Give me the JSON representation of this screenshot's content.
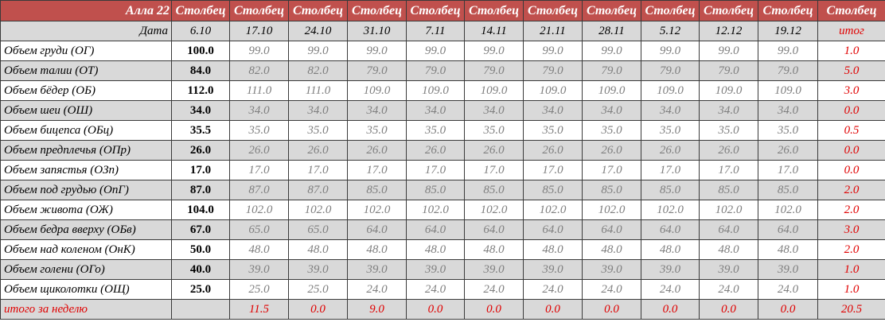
{
  "table": {
    "title": "Алла 22",
    "column_headers": [
      "Столбец",
      "Столбец",
      "Столбец",
      "Столбец",
      "Столбец",
      "Столбец",
      "Столбец",
      "Столбец",
      "Столбец",
      "Столбец",
      "Столбец",
      "Столбец"
    ],
    "date_label": "Дата",
    "dates": [
      "6.10",
      "17.10",
      "24.10",
      "31.10",
      "7.11",
      "14.11",
      "21.11",
      "28.11",
      "5.12",
      "12.12",
      "19.12"
    ],
    "total_label": "итог",
    "rows": [
      {
        "label": "Объем груди (ОГ)",
        "values": [
          "100.0",
          "99.0",
          "99.0",
          "99.0",
          "99.0",
          "99.0",
          "99.0",
          "99.0",
          "99.0",
          "99.0",
          "99.0"
        ],
        "total": "1.0"
      },
      {
        "label": "Объем талии (ОТ)",
        "values": [
          "84.0",
          "82.0",
          "82.0",
          "79.0",
          "79.0",
          "79.0",
          "79.0",
          "79.0",
          "79.0",
          "79.0",
          "79.0"
        ],
        "total": "5.0"
      },
      {
        "label": "Объем бёдер (ОБ)",
        "values": [
          "112.0",
          "111.0",
          "111.0",
          "109.0",
          "109.0",
          "109.0",
          "109.0",
          "109.0",
          "109.0",
          "109.0",
          "109.0"
        ],
        "total": "3.0"
      },
      {
        "label": "Объем шеи (ОШ)",
        "values": [
          "34.0",
          "34.0",
          "34.0",
          "34.0",
          "34.0",
          "34.0",
          "34.0",
          "34.0",
          "34.0",
          "34.0",
          "34.0"
        ],
        "total": "0.0"
      },
      {
        "label": "Объем бицепса (ОБц)",
        "values": [
          "35.5",
          "35.0",
          "35.0",
          "35.0",
          "35.0",
          "35.0",
          "35.0",
          "35.0",
          "35.0",
          "35.0",
          "35.0"
        ],
        "total": "0.5"
      },
      {
        "label": "Объем предплечья (ОПр)",
        "values": [
          "26.0",
          "26.0",
          "26.0",
          "26.0",
          "26.0",
          "26.0",
          "26.0",
          "26.0",
          "26.0",
          "26.0",
          "26.0"
        ],
        "total": "0.0"
      },
      {
        "label": "Объем запястья (ОЗп)",
        "values": [
          "17.0",
          "17.0",
          "17.0",
          "17.0",
          "17.0",
          "17.0",
          "17.0",
          "17.0",
          "17.0",
          "17.0",
          "17.0"
        ],
        "total": "0.0"
      },
      {
        "label": "Объем под грудью (ОпГ)",
        "values": [
          "87.0",
          "87.0",
          "87.0",
          "85.0",
          "85.0",
          "85.0",
          "85.0",
          "85.0",
          "85.0",
          "85.0",
          "85.0"
        ],
        "total": "2.0"
      },
      {
        "label": "Объем живота (ОЖ)",
        "values": [
          "104.0",
          "102.0",
          "102.0",
          "102.0",
          "102.0",
          "102.0",
          "102.0",
          "102.0",
          "102.0",
          "102.0",
          "102.0"
        ],
        "total": "2.0"
      },
      {
        "label": "Объем бедра вверху (ОБв)",
        "values": [
          "67.0",
          "65.0",
          "65.0",
          "64.0",
          "64.0",
          "64.0",
          "64.0",
          "64.0",
          "64.0",
          "64.0",
          "64.0"
        ],
        "total": "3.0"
      },
      {
        "label": "Объем над коленом (ОнК)",
        "values": [
          "50.0",
          "48.0",
          "48.0",
          "48.0",
          "48.0",
          "48.0",
          "48.0",
          "48.0",
          "48.0",
          "48.0",
          "48.0"
        ],
        "total": "2.0"
      },
      {
        "label": "Объем голени (ОГо)",
        "values": [
          "40.0",
          "39.0",
          "39.0",
          "39.0",
          "39.0",
          "39.0",
          "39.0",
          "39.0",
          "39.0",
          "39.0",
          "39.0"
        ],
        "total": "1.0"
      },
      {
        "label": "Объем щиколотки (ОЩ)",
        "values": [
          "25.0",
          "25.0",
          "25.0",
          "24.0",
          "24.0",
          "24.0",
          "24.0",
          "24.0",
          "24.0",
          "24.0",
          "24.0"
        ],
        "total": "1.0"
      }
    ],
    "weekly": {
      "label": "итого за неделю",
      "values": [
        "11.5",
        "0.0",
        "9.0",
        "0.0",
        "0.0",
        "0.0",
        "0.0",
        "0.0",
        "0.0",
        "0.0"
      ],
      "total": "20.5"
    }
  }
}
